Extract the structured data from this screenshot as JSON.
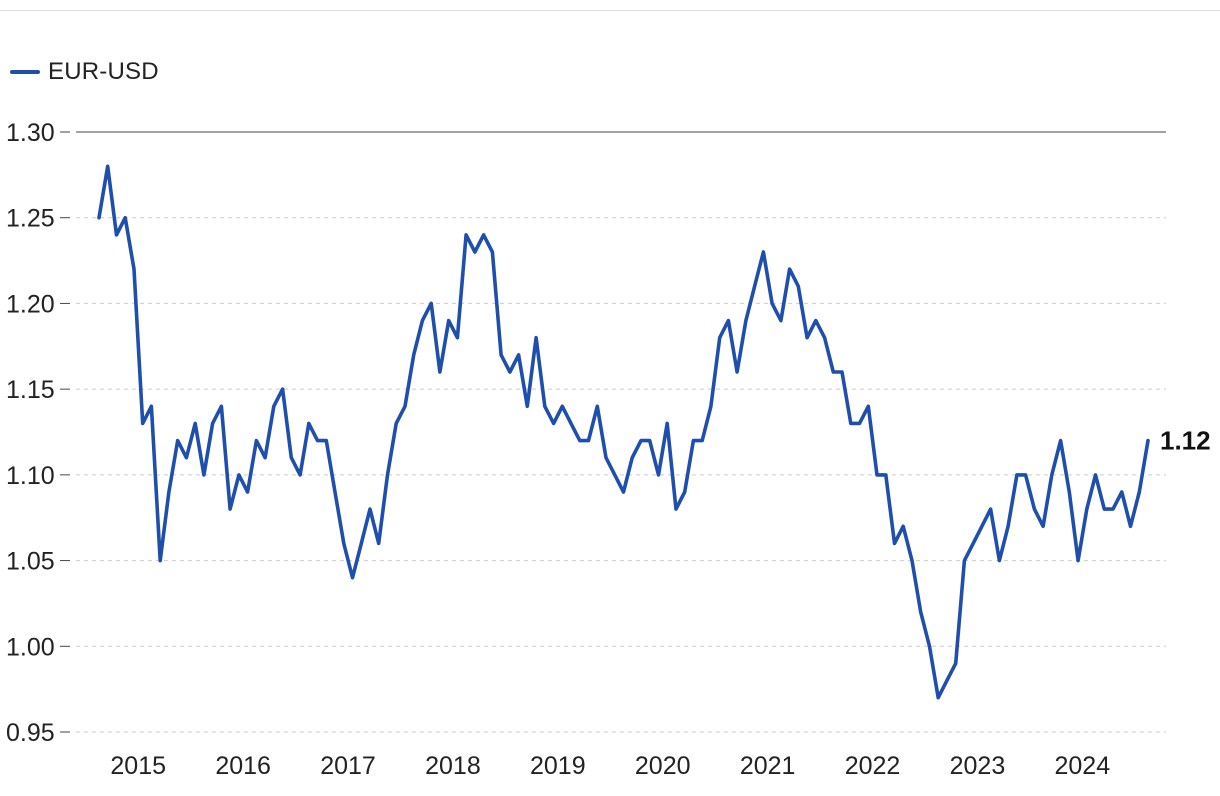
{
  "chart_data": {
    "type": "line",
    "legend": {
      "position": "top-left",
      "entries": [
        "EUR-USD"
      ]
    },
    "series": [
      {
        "name": "EUR-USD",
        "color": "#1f4fad",
        "x": [
          "2014-10",
          "2014-11",
          "2014-12",
          "2015-01",
          "2015-02",
          "2015-03",
          "2015-04",
          "2015-05",
          "2015-06",
          "2015-07",
          "2015-08",
          "2015-09",
          "2015-10",
          "2015-11",
          "2015-12",
          "2016-01",
          "2016-02",
          "2016-03",
          "2016-04",
          "2016-05",
          "2016-06",
          "2016-07",
          "2016-08",
          "2016-09",
          "2016-10",
          "2016-11",
          "2016-12",
          "2017-01",
          "2017-02",
          "2017-03",
          "2017-04",
          "2017-05",
          "2017-06",
          "2017-07",
          "2017-08",
          "2017-09",
          "2017-10",
          "2017-11",
          "2017-12",
          "2018-01",
          "2018-02",
          "2018-03",
          "2018-04",
          "2018-05",
          "2018-06",
          "2018-07",
          "2018-08",
          "2018-09",
          "2018-10",
          "2018-11",
          "2018-12",
          "2019-01",
          "2019-02",
          "2019-03",
          "2019-04",
          "2019-05",
          "2019-06",
          "2019-07",
          "2019-08",
          "2019-09",
          "2019-10",
          "2019-11",
          "2019-12",
          "2020-01",
          "2020-02",
          "2020-03",
          "2020-04",
          "2020-05",
          "2020-06",
          "2020-07",
          "2020-08",
          "2020-09",
          "2020-10",
          "2020-11",
          "2020-12",
          "2021-01",
          "2021-02",
          "2021-03",
          "2021-04",
          "2021-05",
          "2021-06",
          "2021-07",
          "2021-08",
          "2021-09",
          "2021-10",
          "2021-11",
          "2021-12",
          "2022-01",
          "2022-02",
          "2022-03",
          "2022-04",
          "2022-05",
          "2022-06",
          "2022-07",
          "2022-08",
          "2022-09",
          "2022-10",
          "2022-11",
          "2022-12",
          "2023-01",
          "2023-02",
          "2023-03",
          "2023-04",
          "2023-05",
          "2023-06",
          "2023-07",
          "2023-08",
          "2023-09",
          "2023-10",
          "2023-11",
          "2023-12",
          "2024-01",
          "2024-02",
          "2024-03",
          "2024-04",
          "2024-05",
          "2024-06",
          "2024-07",
          "2024-08",
          "2024-09",
          "2024-10"
        ],
        "values": [
          1.25,
          1.28,
          1.24,
          1.25,
          1.22,
          1.13,
          1.14,
          1.05,
          1.09,
          1.12,
          1.11,
          1.13,
          1.1,
          1.13,
          1.14,
          1.08,
          1.1,
          1.09,
          1.12,
          1.11,
          1.14,
          1.15,
          1.11,
          1.1,
          1.13,
          1.12,
          1.12,
          1.09,
          1.06,
          1.04,
          1.06,
          1.08,
          1.06,
          1.1,
          1.13,
          1.14,
          1.17,
          1.19,
          1.2,
          1.16,
          1.19,
          1.18,
          1.24,
          1.23,
          1.24,
          1.23,
          1.17,
          1.16,
          1.17,
          1.14,
          1.18,
          1.14,
          1.13,
          1.14,
          1.13,
          1.12,
          1.12,
          1.14,
          1.11,
          1.1,
          1.09,
          1.11,
          1.12,
          1.12,
          1.1,
          1.13,
          1.08,
          1.09,
          1.12,
          1.12,
          1.14,
          1.18,
          1.19,
          1.16,
          1.19,
          1.21,
          1.23,
          1.2,
          1.19,
          1.22,
          1.21,
          1.18,
          1.19,
          1.18,
          1.16,
          1.16,
          1.13,
          1.13,
          1.14,
          1.1,
          1.1,
          1.06,
          1.07,
          1.05,
          1.02,
          1.0,
          0.97,
          0.98,
          0.99,
          1.05,
          1.06,
          1.07,
          1.08,
          1.05,
          1.07,
          1.1,
          1.1,
          1.08,
          1.07,
          1.1,
          1.12,
          1.09,
          1.05,
          1.08,
          1.1,
          1.08,
          1.08,
          1.09,
          1.07,
          1.09,
          1.12
        ]
      }
    ],
    "x_tick_labels": [
      "2015",
      "2016",
      "2017",
      "2018",
      "2019",
      "2020",
      "2021",
      "2022",
      "2023",
      "2024"
    ],
    "y_tick_labels": [
      "0.95",
      "1.00",
      "1.05",
      "1.10",
      "1.15",
      "1.20",
      "1.25",
      "1.30"
    ],
    "ylim": [
      0.95,
      1.3
    ],
    "xlim": [
      "2014-10",
      "2024-10"
    ],
    "grid": {
      "horizontal": true,
      "style": "dashed"
    },
    "last_value_label": "1.12",
    "title": "",
    "xlabel": "",
    "ylabel": ""
  }
}
